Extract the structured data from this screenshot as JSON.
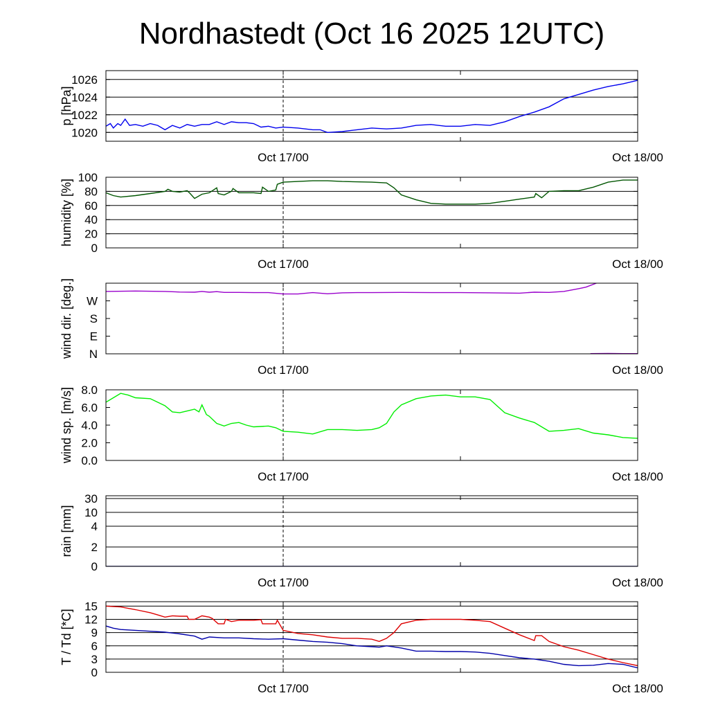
{
  "title": "Nordhastedt (Oct 16 2025 12UTC)",
  "chart_data": [
    {
      "type": "line",
      "name": "pressure",
      "ylabel": "p [hPa]",
      "ylim": [
        1019,
        1027
      ],
      "yticks": [
        1020,
        1022,
        1024,
        1026
      ],
      "ytick_labels": [
        "1020",
        "1022",
        "1024",
        "1026"
      ],
      "xlim": [
        0,
        36
      ],
      "xtick_labels": [
        {
          "x": 12,
          "label": "Oct 17/00"
        },
        {
          "x": 36,
          "label": "Oct 18/00"
        }
      ],
      "grid": true,
      "series": [
        {
          "color": "#0000ee",
          "x": [
            0,
            0.3,
            0.5,
            0.8,
            1,
            1.3,
            1.6,
            2,
            2.5,
            3,
            3.5,
            4,
            4.5,
            5,
            5.5,
            6,
            6.5,
            7,
            7.5,
            8,
            8.5,
            9,
            9.5,
            10,
            10.5,
            11,
            11.5,
            12,
            13,
            14,
            14.5,
            15,
            16,
            17,
            18,
            19,
            20,
            21,
            22,
            23,
            24,
            25,
            26,
            27,
            28,
            29,
            30,
            31,
            32,
            33,
            34,
            35,
            36
          ],
          "y": [
            1020.7,
            1021.0,
            1020.5,
            1021.0,
            1020.8,
            1021.5,
            1020.8,
            1020.9,
            1020.7,
            1021.0,
            1020.8,
            1020.3,
            1020.8,
            1020.5,
            1020.9,
            1020.7,
            1020.9,
            1020.9,
            1021.2,
            1020.9,
            1021.2,
            1021.1,
            1021.1,
            1021.0,
            1020.6,
            1020.7,
            1020.5,
            1020.6,
            1020.5,
            1020.3,
            1020.3,
            1020.0,
            1020.1,
            1020.3,
            1020.5,
            1020.4,
            1020.5,
            1020.8,
            1020.9,
            1020.7,
            1020.7,
            1020.9,
            1020.8,
            1021.2,
            1021.8,
            1022.3,
            1022.9,
            1023.8,
            1024.3,
            1024.8,
            1025.2,
            1025.5,
            1025.9
          ]
        }
      ]
    },
    {
      "type": "line",
      "name": "humidity",
      "ylabel": "humidity [%]",
      "ylim": [
        0,
        100
      ],
      "yticks": [
        0,
        20,
        40,
        60,
        80,
        100
      ],
      "ytick_labels": [
        "0",
        "20",
        "40",
        "60",
        "80",
        "100"
      ],
      "xlim": [
        0,
        36
      ],
      "xtick_labels": [
        {
          "x": 12,
          "label": "Oct 17/00"
        },
        {
          "x": 36,
          "label": "Oct 18/00"
        }
      ],
      "grid": true,
      "series": [
        {
          "color": "#005500",
          "x": [
            0,
            0.5,
            1,
            2,
            3,
            4,
            4.2,
            4.5,
            5,
            5.5,
            5.7,
            6,
            6.5,
            7,
            7.5,
            7.6,
            8,
            8.5,
            8.6,
            9,
            10,
            10.5,
            10.6,
            11,
            11.5,
            11.6,
            12,
            13,
            14,
            15,
            16,
            18,
            19,
            19.5,
            20,
            21,
            22,
            23,
            24,
            25,
            26,
            27,
            28,
            29,
            29.1,
            29.5,
            30,
            31,
            32,
            33,
            34,
            35,
            36
          ],
          "y": [
            78,
            74,
            72,
            74,
            77,
            80,
            83,
            80,
            79,
            81,
            77,
            70,
            76,
            78,
            85,
            77,
            75,
            80,
            84,
            78,
            78,
            77,
            86,
            80,
            82,
            90,
            93,
            94,
            95,
            95,
            94,
            93,
            92,
            85,
            75,
            68,
            63,
            62,
            62,
            62,
            63,
            66,
            69,
            72,
            77,
            71,
            80,
            81,
            81,
            86,
            93,
            96,
            96
          ]
        }
      ]
    },
    {
      "type": "line",
      "name": "wind direction",
      "ylabel": "wind dir. [deg.]",
      "ylim": [
        0,
        360
      ],
      "yticks": [
        0,
        90,
        180,
        270
      ],
      "ytick_labels": [
        "N",
        "E",
        "S",
        "W"
      ],
      "xlim": [
        0,
        36
      ],
      "xtick_labels": [
        {
          "x": 12,
          "label": "Oct 17/00"
        },
        {
          "x": 36,
          "label": "Oct 18/00"
        }
      ],
      "grid": false,
      "series": [
        {
          "color": "#9900cc",
          "x": [
            0,
            2,
            4,
            5,
            6,
            6.5,
            7,
            7.5,
            8,
            9,
            10,
            11,
            12,
            13,
            14,
            15,
            16,
            17,
            18,
            20,
            22,
            24,
            26,
            28,
            29,
            30,
            31,
            32,
            32.5,
            33.2
          ],
          "y": [
            318,
            320,
            318,
            315,
            314,
            318,
            314,
            317,
            313,
            313,
            312,
            312,
            305,
            305,
            312,
            306,
            311,
            312,
            312,
            313,
            312,
            312,
            311,
            309,
            314,
            313,
            318,
            332,
            340,
            360
          ]
        },
        {
          "color": "#9900cc",
          "x": [
            32.8,
            34,
            35,
            36
          ],
          "y": [
            1,
            2,
            1,
            1
          ]
        }
      ]
    },
    {
      "type": "line",
      "name": "wind speed",
      "ylabel": "wind sp. [m/s]",
      "ylim": [
        0,
        8
      ],
      "yticks": [
        0,
        2,
        4,
        6,
        8
      ],
      "ytick_labels": [
        "0.0",
        "2.0",
        "4.0",
        "6.0",
        "8.0"
      ],
      "xlim": [
        0,
        36
      ],
      "xtick_labels": [
        {
          "x": 12,
          "label": "Oct 17/00"
        },
        {
          "x": 36,
          "label": "Oct 18/00"
        }
      ],
      "grid": false,
      "series": [
        {
          "color": "#00ee00",
          "x": [
            0,
            0.5,
            1,
            1.5,
            2,
            3,
            4,
            4.5,
            5,
            5.5,
            6,
            6.3,
            6.5,
            6.8,
            7,
            7.5,
            8,
            8.5,
            9,
            9.5,
            10,
            11,
            11.5,
            12,
            13,
            14,
            15,
            16,
            17,
            18,
            18.5,
            19,
            19.5,
            20,
            21,
            22,
            23,
            24,
            25,
            26,
            27,
            28,
            29,
            30,
            31,
            32,
            33,
            34,
            35,
            36
          ],
          "y": [
            6.6,
            7.1,
            7.6,
            7.4,
            7.1,
            7.0,
            6.2,
            5.5,
            5.4,
            5.6,
            5.8,
            5.5,
            6.3,
            5.2,
            5.0,
            4.2,
            3.9,
            4.2,
            4.3,
            4.0,
            3.8,
            3.9,
            3.7,
            3.3,
            3.2,
            3.0,
            3.5,
            3.5,
            3.4,
            3.5,
            3.7,
            4.2,
            5.5,
            6.3,
            7.0,
            7.3,
            7.4,
            7.2,
            7.2,
            6.9,
            5.4,
            4.8,
            4.3,
            3.3,
            3.4,
            3.6,
            3.1,
            2.9,
            2.6,
            2.5
          ]
        }
      ]
    },
    {
      "type": "line",
      "name": "rain",
      "ylabel": "rain [mm]",
      "ylim": [
        0,
        32
      ],
      "yticks": [
        0,
        2,
        4,
        10,
        30
      ],
      "ytick_labels": [
        "0",
        "2",
        "4",
        "10",
        "30"
      ],
      "scale": "nonlinear",
      "xlim": [
        0,
        36
      ],
      "xtick_labels": [
        {
          "x": 12,
          "label": "Oct 17/00"
        },
        {
          "x": 36,
          "label": "Oct 18/00"
        }
      ],
      "grid": true,
      "series": [
        {
          "color": "#000080",
          "x": [
            0,
            36
          ],
          "y": [
            0,
            0
          ]
        }
      ]
    },
    {
      "type": "line",
      "name": "temperature and dew point",
      "ylabel": "T / Td [*C]",
      "ylim": [
        0,
        16
      ],
      "yticks": [
        0,
        3,
        6,
        9,
        12,
        15
      ],
      "ytick_labels": [
        "0",
        "3",
        "6",
        "9",
        "12",
        "15"
      ],
      "xlim": [
        0,
        36
      ],
      "xtick_labels": [
        {
          "x": 12,
          "label": "Oct 17/00"
        },
        {
          "x": 36,
          "label": "Oct 18/00"
        }
      ],
      "grid": true,
      "series": [
        {
          "color": "#dd0000",
          "x": [
            0,
            1,
            2,
            3,
            3.5,
            4,
            4.5,
            5,
            5.5,
            5.6,
            6,
            6.5,
            7,
            7.2,
            7.6,
            8,
            8.1,
            8.5,
            9,
            10,
            10.5,
            10.6,
            11,
            11.5,
            11.6,
            12,
            13,
            14,
            15,
            16,
            17,
            18,
            18.5,
            19,
            19.5,
            20,
            21,
            22,
            23,
            24,
            25,
            26,
            27,
            28,
            29,
            29.1,
            29.5,
            30,
            31,
            32,
            33,
            34,
            35,
            36
          ],
          "y": [
            15,
            14.8,
            14.2,
            13.5,
            13,
            12.5,
            12.8,
            12.7,
            12.7,
            12,
            12,
            12.8,
            12.5,
            12.2,
            11,
            11,
            12,
            11.5,
            11.8,
            11.8,
            11.9,
            11,
            11,
            11,
            11.8,
            9.5,
            8.8,
            8.5,
            8,
            7.7,
            7.7,
            7.5,
            7,
            7.7,
            9,
            11,
            11.8,
            12,
            12,
            12,
            11.8,
            11.5,
            10,
            8.5,
            7.2,
            8.3,
            8.3,
            7,
            5.8,
            5,
            4,
            3,
            2.2,
            1.5
          ]
        },
        {
          "color": "#0000aa",
          "x": [
            0,
            0.5,
            1,
            2,
            3,
            4,
            5,
            6,
            6.5,
            6.8,
            7,
            8,
            9,
            10,
            11,
            12,
            13,
            14,
            15,
            16,
            17,
            18,
            18.5,
            19,
            20,
            21,
            22,
            23,
            24,
            25,
            26,
            27,
            28,
            29,
            30,
            31,
            32,
            33,
            34,
            35,
            36
          ],
          "y": [
            10.5,
            10,
            9.7,
            9.5,
            9.3,
            9.1,
            8.7,
            8.2,
            7.5,
            7.8,
            8,
            7.8,
            7.8,
            7.6,
            7.5,
            7.6,
            7.3,
            7,
            6.8,
            6.5,
            6,
            5.8,
            5.7,
            6,
            5.5,
            4.8,
            4.8,
            4.7,
            4.7,
            4.6,
            4.3,
            3.8,
            3.3,
            3,
            2.5,
            1.8,
            1.5,
            1.6,
            2,
            1.8,
            1
          ]
        }
      ]
    }
  ]
}
